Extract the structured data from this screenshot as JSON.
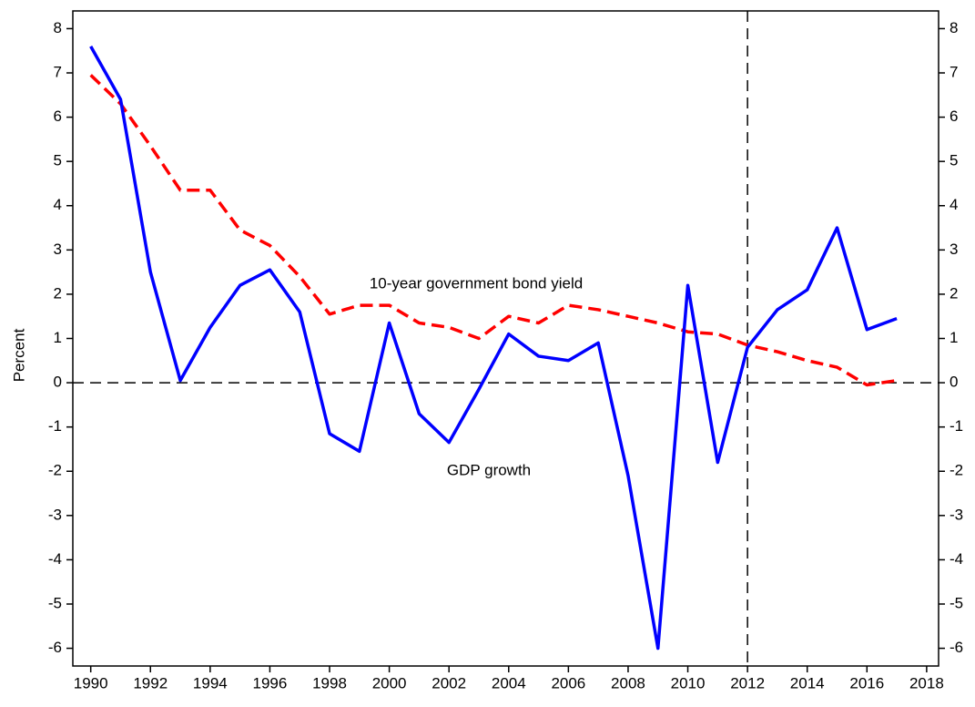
{
  "chart_data": {
    "type": "line",
    "ylabel": "Percent",
    "annotations": [
      "10-year government bond yield",
      "GDP growth"
    ],
    "x": [
      1990,
      1991,
      1992,
      1993,
      1994,
      1995,
      1996,
      1997,
      1998,
      1999,
      2000,
      2001,
      2002,
      2003,
      2004,
      2005,
      2006,
      2007,
      2008,
      2009,
      2010,
      2011,
      2012,
      2013,
      2014,
      2015,
      2016,
      2017
    ],
    "series": [
      {
        "name": "GDP growth",
        "color": "#0000ff",
        "dash": false,
        "values": [
          7.6,
          6.4,
          2.5,
          0.05,
          1.25,
          2.2,
          2.55,
          1.6,
          -1.15,
          -1.55,
          1.35,
          -0.7,
          -1.35,
          -0.15,
          1.1,
          0.6,
          0.5,
          0.9,
          -2.1,
          -6.0,
          2.2,
          -1.8,
          0.8,
          1.65,
          2.1,
          3.5,
          1.2,
          1.45
        ]
      },
      {
        "name": "10-year government bond yield",
        "color": "#ff0000",
        "dash": true,
        "values": [
          6.95,
          6.3,
          5.35,
          4.35,
          4.35,
          3.45,
          3.1,
          2.4,
          1.55,
          1.75,
          1.75,
          1.35,
          1.25,
          1.0,
          1.5,
          1.35,
          1.75,
          1.65,
          1.5,
          1.35,
          1.15,
          1.1,
          0.85,
          0.7,
          0.5,
          0.35,
          -0.05,
          0.05
        ]
      }
    ],
    "xlim": [
      1989.4,
      2018.4
    ],
    "xticks": [
      1990,
      1992,
      1994,
      1996,
      1998,
      2000,
      2002,
      2004,
      2006,
      2008,
      2010,
      2012,
      2014,
      2016,
      2018
    ],
    "ylim": [
      -6.4,
      8.4
    ],
    "yticks": [
      -6,
      -5,
      -4,
      -3,
      -2,
      -1,
      0,
      1,
      2,
      3,
      4,
      5,
      6,
      7,
      8
    ],
    "y2lim": [
      -6.4,
      8.4
    ],
    "y2ticks": [
      -6,
      -5,
      -4,
      -3,
      -2,
      -1,
      0,
      1,
      2,
      3,
      4,
      5,
      6,
      7,
      8
    ],
    "hlines": [
      0
    ],
    "vlines": [
      2012
    ],
    "grid": false
  }
}
